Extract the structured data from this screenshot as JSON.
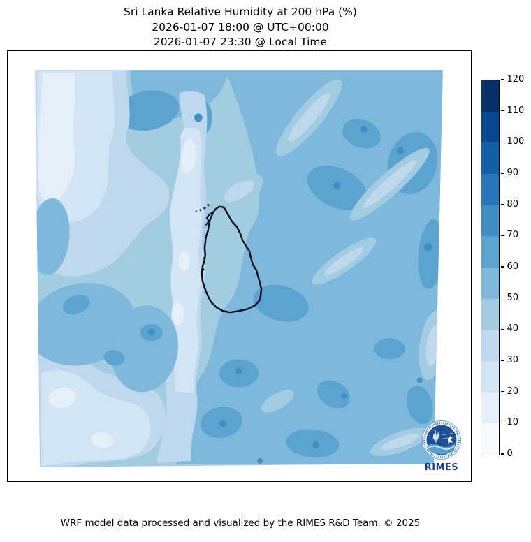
{
  "title": {
    "line1": "Sri Lanka Relative Humidity at 200 hPa (%)",
    "line2": "2026-01-07 18:00 @ UTC+00:00",
    "line3": "2026-01-07 23:30 @ Local Time"
  },
  "footer": {
    "text": "WRF model data processed and visualized by the RIMES R&D Team. © 2025"
  },
  "logo": {
    "label": "RIMES"
  },
  "colorbar": {
    "min": 0,
    "max": 120,
    "tick_values": [
      0,
      10,
      20,
      30,
      40,
      50,
      60,
      70,
      80,
      90,
      100,
      110,
      120
    ],
    "palette": [
      {
        "range": "0-10",
        "color": "#f7fbff"
      },
      {
        "range": "10-20",
        "color": "#e5eff9"
      },
      {
        "range": "20-30",
        "color": "#d3e4f3"
      },
      {
        "range": "30-40",
        "color": "#bfd8ed"
      },
      {
        "range": "40-50",
        "color": "#a2cce2"
      },
      {
        "range": "50-60",
        "color": "#7eb8da"
      },
      {
        "range": "60-70",
        "color": "#5ca4d0"
      },
      {
        "range": "70-80",
        "color": "#3f8fc5"
      },
      {
        "range": "80-90",
        "color": "#2777b8"
      },
      {
        "range": "90-100",
        "color": "#1360a7"
      },
      {
        "range": "100-110",
        "color": "#08488f"
      },
      {
        "range": "110-120",
        "color": "#08306b"
      }
    ]
  },
  "chart_data": {
    "type": "heatmap",
    "subtype": "filled_contour_map",
    "title": "Sri Lanka Relative Humidity at 200 hPa (%)",
    "timestamp_utc": "2026-01-07 18:00 @ UTC+00:00",
    "timestamp_local": "2026-01-07 23:30 @ Local Time",
    "variable": "Relative Humidity",
    "pressure_level_hPa": 200,
    "units": "%",
    "colormap": "Blues (12 discrete levels)",
    "contour_levels": [
      0,
      10,
      20,
      30,
      40,
      50,
      60,
      70,
      80,
      90,
      100,
      110,
      120
    ],
    "colorbar_range": [
      0,
      120
    ],
    "legend_position": "right vertical colorbar",
    "region": "Sri Lanka and surrounding ocean (WRF model domain, coastline overlaid in black)",
    "observed_field_summary": [
      {
        "area": "northwest quadrant",
        "approx_values_pct": "10-40, lightest diagonal band near NW corner"
      },
      {
        "area": "top edge center band",
        "approx_values_pct": "50-70"
      },
      {
        "area": "northeast / east half",
        "approx_values_pct": "50-70 with small pockets 70-80 and light 30-50 diagonal streaks"
      },
      {
        "area": "center vertical snaking band (through west of Sri Lanka)",
        "approx_values_pct": "20-40"
      },
      {
        "area": "over Sri Lanka island",
        "approx_values_pct": "40-60"
      },
      {
        "area": "west-central blobs",
        "approx_values_pct": "50-70"
      },
      {
        "area": "southwest corner",
        "approx_values_pct": "10-30"
      },
      {
        "area": "south-central and southeast",
        "approx_values_pct": "50-70 with pockets 70-80"
      }
    ]
  }
}
